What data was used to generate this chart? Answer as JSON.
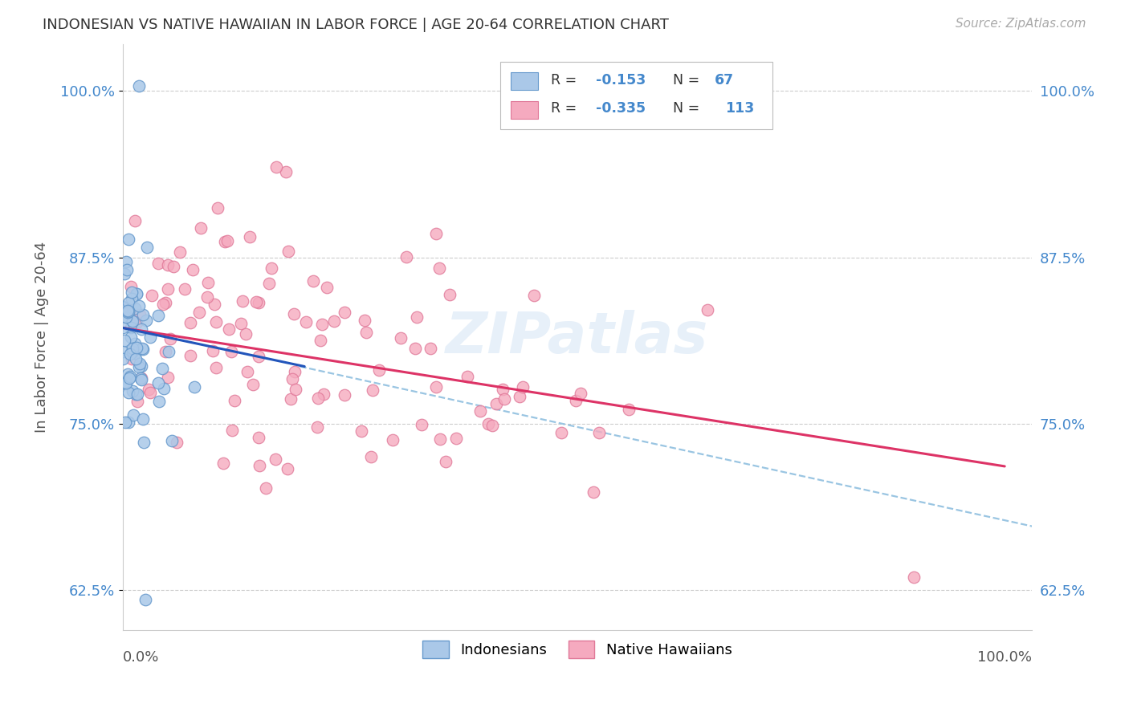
{
  "title": "INDONESIAN VS NATIVE HAWAIIAN IN LABOR FORCE | AGE 20-64 CORRELATION CHART",
  "source": "Source: ZipAtlas.com",
  "ylabel": "In Labor Force | Age 20-64",
  "ytick_values": [
    0.625,
    0.75,
    0.875,
    1.0
  ],
  "ytick_labels": [
    "62.5%",
    "75.0%",
    "87.5%",
    "100.0%"
  ],
  "xrange": [
    0.0,
    1.0
  ],
  "yrange": [
    0.595,
    1.035
  ],
  "indonesian_color": "#aac8e8",
  "indonesian_edge": "#6699cc",
  "native_hawaiian_color": "#f5aabf",
  "native_hawaiian_edge": "#e07898",
  "trend_blue": "#2255bb",
  "trend_pink": "#dd3366",
  "trend_dash_color": "#88bbdd",
  "watermark": "ZIPatlas",
  "indonesian_R": -0.153,
  "indonesian_N": 67,
  "native_hawaiian_R": -0.335,
  "native_hawaiian_N": 113,
  "grid_color": "#cccccc",
  "background": "#ffffff",
  "tick_color": "#4488cc",
  "label_color": "#555555",
  "legend_r1": "-0.153",
  "legend_n1": "67",
  "legend_r2": "-0.335",
  "legend_n2": "113",
  "blue_trend_x": [
    0.0,
    0.2
  ],
  "blue_trend_y": [
    0.822,
    0.793
  ],
  "pink_trend_x": [
    0.0,
    0.97
  ],
  "pink_trend_y": [
    0.822,
    0.718
  ],
  "dash_trend_x": [
    0.195,
    1.0
  ],
  "dash_trend_y": [
    0.793,
    0.673
  ]
}
